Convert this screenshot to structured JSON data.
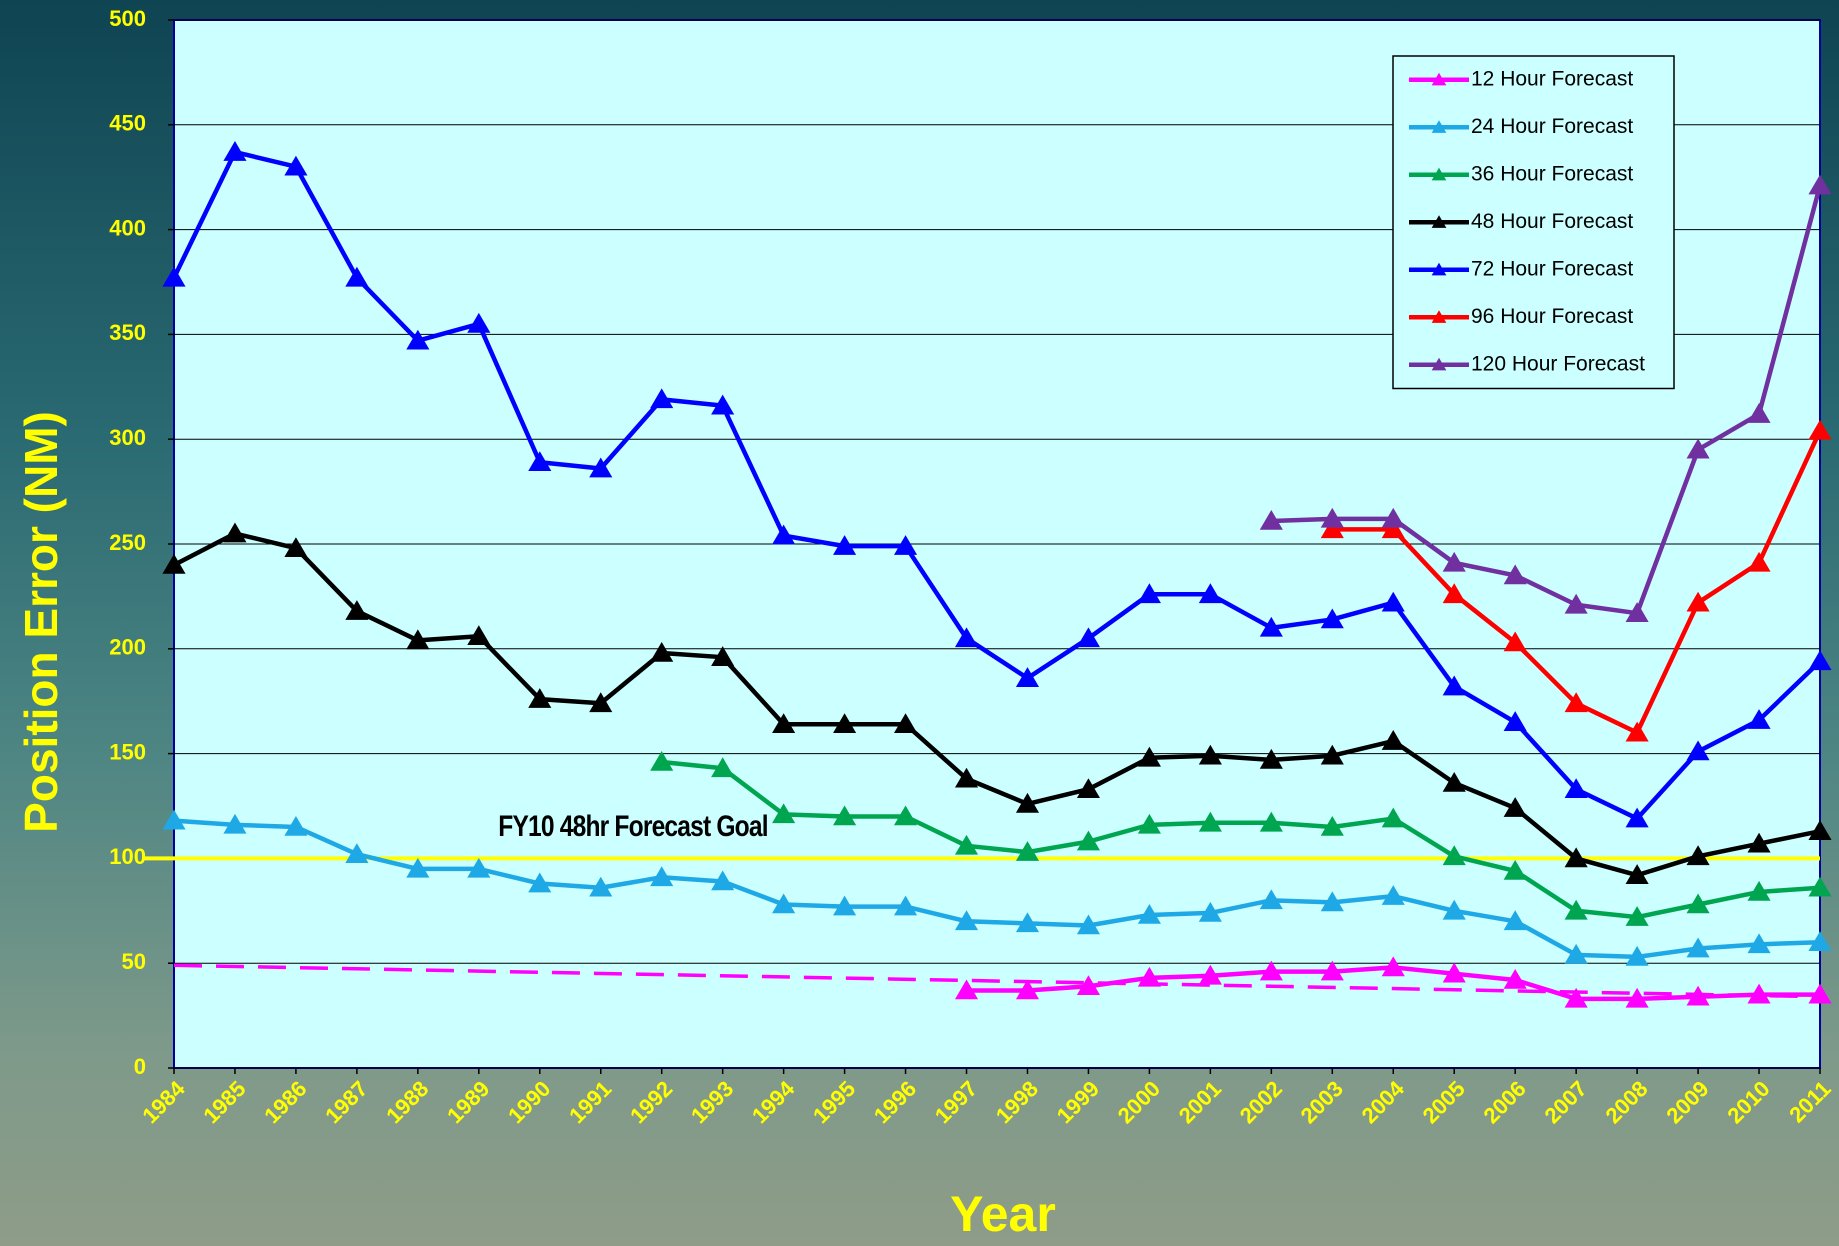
{
  "chart_data": {
    "type": "line",
    "y_label": "Position Error (NM)",
    "x_label": "Year",
    "annotation": "FY10 48hr Forecast Goal",
    "categories": [
      "1984",
      "1985",
      "1986",
      "1987",
      "1988",
      "1989",
      "1990",
      "1991",
      "1992",
      "1993",
      "1994",
      "1995",
      "1996",
      "1997",
      "1998",
      "1999",
      "2000",
      "2001",
      "2002",
      "2003",
      "2004",
      "2005",
      "2006",
      "2007",
      "2008",
      "2009",
      "2010",
      "2011"
    ],
    "ylim": [
      0,
      500
    ],
    "yticks": [
      0,
      50,
      100,
      150,
      200,
      250,
      300,
      350,
      400,
      450,
      500
    ],
    "grid": true,
    "legend": "upper right",
    "goal_line": {
      "value": 100,
      "color": "#ffff00"
    },
    "trend_line": {
      "start": 49,
      "end": 34,
      "color": "#ff00ff"
    },
    "series": [
      {
        "name": "12 Hour Forecast",
        "color": "#ff00ff",
        "values": [
          null,
          null,
          null,
          null,
          null,
          null,
          null,
          null,
          null,
          null,
          null,
          null,
          null,
          37,
          37,
          39,
          43,
          44,
          46,
          46,
          48,
          45,
          42,
          33,
          33,
          34,
          35,
          35
        ]
      },
      {
        "name": "24 Hour Forecast",
        "color": "#1ea9e6",
        "values": [
          118,
          116,
          115,
          102,
          95,
          95,
          88,
          86,
          91,
          89,
          78,
          77,
          77,
          70,
          69,
          68,
          73,
          74,
          80,
          79,
          82,
          75,
          70,
          54,
          53,
          57,
          59,
          60
        ]
      },
      {
        "name": "36 Hour Forecast",
        "color": "#00a550",
        "values": [
          null,
          null,
          null,
          null,
          null,
          null,
          null,
          null,
          146,
          143,
          121,
          120,
          120,
          106,
          103,
          108,
          116,
          117,
          117,
          115,
          119,
          101,
          94,
          75,
          72,
          78,
          84,
          86
        ]
      },
      {
        "name": "48 Hour Forecast",
        "color": "#000000",
        "values": [
          240,
          255,
          248,
          218,
          204,
          206,
          176,
          174,
          198,
          196,
          164,
          164,
          164,
          138,
          126,
          133,
          148,
          149,
          147,
          149,
          156,
          136,
          124,
          100,
          92,
          101,
          107,
          113
        ]
      },
      {
        "name": "72 Hour Forecast",
        "color": "#0000ff",
        "values": [
          377,
          437,
          430,
          377,
          347,
          355,
          289,
          286,
          319,
          316,
          254,
          249,
          249,
          205,
          186,
          205,
          226,
          226,
          210,
          214,
          222,
          182,
          165,
          133,
          119,
          151,
          166,
          194
        ]
      },
      {
        "name": "96 Hour Forecast",
        "color": "#ff0000",
        "values": [
          null,
          null,
          null,
          null,
          null,
          null,
          null,
          null,
          null,
          null,
          null,
          null,
          null,
          null,
          null,
          null,
          null,
          null,
          null,
          257,
          257,
          226,
          203,
          174,
          160,
          222,
          241,
          304
        ]
      },
      {
        "name": "120 Hour Forecast",
        "color": "#7030a0",
        "values": [
          null,
          null,
          null,
          null,
          null,
          null,
          null,
          null,
          null,
          null,
          null,
          null,
          null,
          null,
          null,
          null,
          null,
          null,
          261,
          262,
          262,
          241,
          235,
          221,
          217,
          295,
          312,
          421
        ]
      }
    ]
  }
}
